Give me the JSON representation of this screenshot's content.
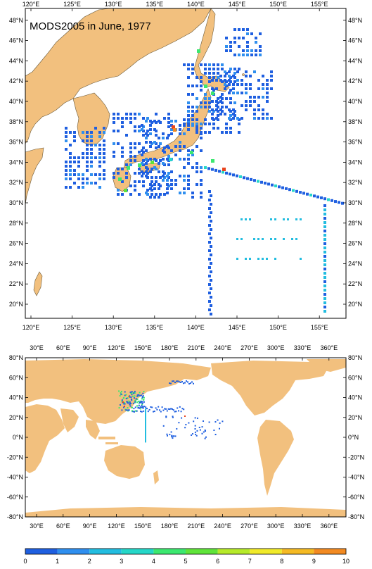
{
  "title": "MODS2005 in June, 1977",
  "map_top": {
    "lon_labels": [
      "120°E",
      "125°E",
      "130°E",
      "135°E",
      "140°E",
      "145°E",
      "150°E",
      "155°E"
    ],
    "lat_labels": [
      "20°N",
      "22°N",
      "24°N",
      "26°N",
      "28°N",
      "30°N",
      "32°N",
      "34°N",
      "36°N",
      "38°N",
      "40°N",
      "42°N",
      "44°N",
      "46°N",
      "48°N"
    ]
  },
  "map_bottom": {
    "lon_labels": [
      "30°E",
      "60°E",
      "90°E",
      "120°E",
      "150°E",
      "180°E",
      "210°E",
      "240°E",
      "270°E",
      "300°E",
      "330°E",
      "360°E"
    ],
    "lat_labels": [
      "80°N",
      "60°N",
      "40°N",
      "20°N",
      "0°N",
      "-20°N",
      "-40°N",
      "-60°N",
      "-80°N"
    ]
  },
  "colorbar": {
    "labels": [
      "0",
      "1",
      "2",
      "3",
      "4",
      "5",
      "6",
      "7",
      "8",
      "9",
      "10"
    ],
    "colors": [
      "#1f5fe0",
      "#2f8fef",
      "#23bde0",
      "#25d7c8",
      "#3ce870",
      "#5fe43a",
      "#b6ea2a",
      "#f0ea2a",
      "#f5ba24",
      "#f28a22",
      "#e8431c"
    ]
  },
  "colors": {
    "land": "#f2c07e",
    "ocean": "#ffffff"
  }
}
